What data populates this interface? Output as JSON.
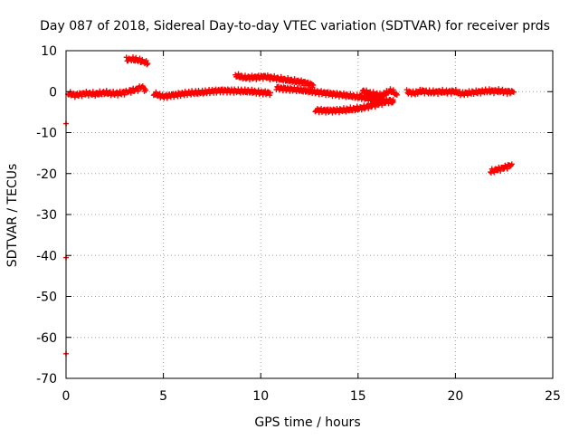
{
  "chart_data": {
    "type": "scatter",
    "title": "Day 087 of 2018, Sidereal Day-to-day VTEC variation (SDTVAR) for receiver prds",
    "xlabel": "GPS time / hours",
    "ylabel": "SDTVAR / TECUs",
    "xlim": [
      0,
      25
    ],
    "ylim": [
      -70,
      10
    ],
    "xticks": [
      0,
      5,
      10,
      15,
      20,
      25
    ],
    "yticks": [
      10,
      0,
      -10,
      -20,
      -30,
      -40,
      -50,
      -60,
      -70
    ],
    "xtick_labels": [
      "0",
      "5",
      "10",
      "15",
      "20",
      "25"
    ],
    "ytick_labels": [
      "10",
      "0",
      "-10",
      "-20",
      "-30",
      "-40",
      "-50",
      "-60",
      "-70"
    ],
    "grid": true,
    "marker_color": "#ff0000",
    "series": [
      {
        "name": "SDTVAR",
        "segments": [
          {
            "x": [
              0.1,
              0.5,
              1.0,
              1.5,
              2.0,
              2.5,
              3.0,
              3.3,
              3.6,
              3.9,
              4.1
            ],
            "y": [
              -0.5,
              -0.8,
              -0.4,
              -0.6,
              -0.3,
              -0.5,
              -0.2,
              0.2,
              0.5,
              1.2,
              0.3
            ]
          },
          {
            "x": [
              4.5,
              5.0,
              5.5,
              6.0,
              6.5,
              7.0,
              7.5,
              8.0,
              8.5,
              9.0,
              9.5,
              10.0,
              10.5
            ],
            "y": [
              -0.5,
              -1.2,
              -0.8,
              -0.5,
              -0.3,
              -0.2,
              0.1,
              0.3,
              0.2,
              0.1,
              0.0,
              -0.2,
              -0.3
            ]
          },
          {
            "x": [
              3.1,
              3.4,
              3.7,
              4.0,
              4.2
            ],
            "y": [
              7.8,
              7.9,
              7.7,
              7.3,
              6.9
            ]
          },
          {
            "x": [
              8.7,
              9.2,
              9.7,
              10.2,
              10.7,
              11.2,
              11.7,
              12.2,
              12.7
            ],
            "y": [
              3.9,
              3.4,
              3.5,
              3.7,
              3.3,
              2.9,
              2.6,
              2.3,
              1.6
            ]
          },
          {
            "x": [
              10.8,
              11.3,
              11.8,
              12.3,
              12.8,
              13.3,
              13.8,
              14.3,
              14.8,
              15.3,
              15.8,
              16.3,
              16.8
            ],
            "y": [
              1.0,
              0.7,
              0.5,
              0.2,
              -0.1,
              -0.3,
              -0.6,
              -0.9,
              -1.2,
              -1.5,
              -1.9,
              -2.2,
              -2.5
            ]
          },
          {
            "x": [
              12.8,
              13.3,
              13.8,
              14.3,
              14.8,
              15.3,
              15.8,
              16.3,
              16.8
            ],
            "y": [
              -4.5,
              -4.6,
              -4.6,
              -4.5,
              -4.3,
              -3.9,
              -3.2,
              -2.6,
              -2.0
            ]
          },
          {
            "x": [
              15.2,
              15.7,
              16.2,
              16.7,
              17.0
            ],
            "y": [
              0.2,
              -0.5,
              -1.0,
              0.3,
              -0.8
            ]
          },
          {
            "x": [
              17.5,
              17.9,
              18.3,
              18.7,
              19.1,
              19.5,
              19.9,
              20.3,
              20.7,
              21.1,
              21.5,
              21.9,
              22.3,
              22.7,
              23.0
            ],
            "y": [
              0.0,
              -0.4,
              0.2,
              -0.2,
              0.0,
              -0.1,
              0.1,
              -0.5,
              -0.3,
              -0.1,
              0.1,
              0.2,
              0.1,
              0.0,
              -0.1
            ]
          },
          {
            "x": [
              21.8,
              22.1,
              22.4,
              22.7,
              22.9
            ],
            "y": [
              -19.5,
              -19.1,
              -18.7,
              -18.2,
              -17.7
            ]
          },
          {
            "x": [
              0.0
            ],
            "y": [
              -7.8
            ]
          },
          {
            "x": [
              0.0
            ],
            "y": [
              -40.5
            ]
          },
          {
            "x": [
              0.0
            ],
            "y": [
              -64.0
            ]
          }
        ]
      }
    ]
  }
}
